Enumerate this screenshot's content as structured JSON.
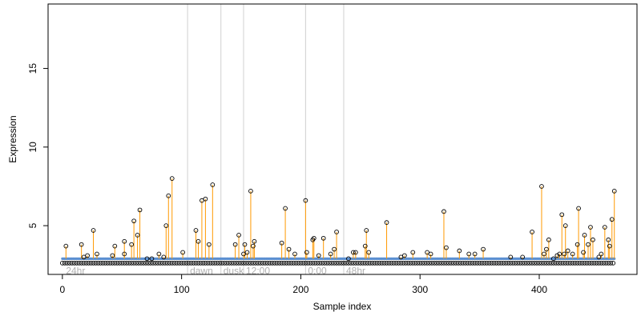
{
  "chart_data": {
    "type": "scatter",
    "title": "",
    "xlabel": "Sample index",
    "ylabel": "Expression",
    "xlim": [
      -12,
      482
    ],
    "ylim": [
      1.9,
      19.1
    ],
    "x_ticks": [
      0,
      100,
      200,
      300,
      400
    ],
    "y_ticks": [
      5,
      10,
      15
    ],
    "baseline": 2.9,
    "colors": {
      "stem": "#FF9900",
      "baseline_dots": "#5B8FD0",
      "points": "#000000",
      "vlines": "#D0D0D0",
      "annot": "#B0B0B0"
    },
    "annotations": [
      {
        "label": "24hr",
        "x": 1
      },
      {
        "label": "dawn",
        "x": 105
      },
      {
        "label": "dusk",
        "x": 133
      },
      {
        "label": "12:00",
        "x": 152
      },
      {
        "label": "0:00",
        "x": 204
      },
      {
        "label": "48hr",
        "x": 236
      }
    ],
    "points": [
      [
        3,
        3.7
      ],
      [
        16,
        3.8
      ],
      [
        18,
        3.0
      ],
      [
        21,
        3.1
      ],
      [
        26,
        4.7
      ],
      [
        29,
        3.2
      ],
      [
        42,
        3.1
      ],
      [
        44,
        3.7
      ],
      [
        52,
        3.2
      ],
      [
        52,
        4.0
      ],
      [
        58,
        3.8
      ],
      [
        60,
        5.3
      ],
      [
        63,
        4.4
      ],
      [
        65,
        6.0
      ],
      [
        71,
        2.9
      ],
      [
        75,
        2.9
      ],
      [
        81,
        3.2
      ],
      [
        85,
        3.0
      ],
      [
        87,
        5.0
      ],
      [
        89,
        6.9
      ],
      [
        92,
        8.0
      ],
      [
        101,
        3.3
      ],
      [
        112,
        4.7
      ],
      [
        114,
        4.0
      ],
      [
        117,
        6.6
      ],
      [
        120,
        6.7
      ],
      [
        123,
        3.8
      ],
      [
        126,
        7.6
      ],
      [
        145,
        3.8
      ],
      [
        148,
        4.4
      ],
      [
        152,
        3.2
      ],
      [
        153,
        3.8
      ],
      [
        155,
        3.3
      ],
      [
        158,
        7.2
      ],
      [
        160,
        3.7
      ],
      [
        161,
        4.0
      ],
      [
        184,
        3.9
      ],
      [
        187,
        6.1
      ],
      [
        190,
        3.5
      ],
      [
        195,
        3.2
      ],
      [
        204,
        6.6
      ],
      [
        205,
        3.3
      ],
      [
        210,
        4.1
      ],
      [
        211,
        4.2
      ],
      [
        215,
        3.1
      ],
      [
        219,
        4.2
      ],
      [
        225,
        3.2
      ],
      [
        228,
        3.5
      ],
      [
        230,
        4.6
      ],
      [
        240,
        2.9
      ],
      [
        244,
        3.3
      ],
      [
        246,
        3.3
      ],
      [
        254,
        3.7
      ],
      [
        255,
        4.7
      ],
      [
        257,
        3.3
      ],
      [
        272,
        5.2
      ],
      [
        284,
        3.0
      ],
      [
        287,
        3.1
      ],
      [
        294,
        3.3
      ],
      [
        306,
        3.3
      ],
      [
        309,
        3.2
      ],
      [
        320,
        5.9
      ],
      [
        322,
        3.6
      ],
      [
        333,
        3.4
      ],
      [
        341,
        3.2
      ],
      [
        346,
        3.2
      ],
      [
        353,
        3.5
      ],
      [
        376,
        3.0
      ],
      [
        386,
        3.0
      ],
      [
        394,
        4.6
      ],
      [
        402,
        7.5
      ],
      [
        404,
        3.2
      ],
      [
        406,
        3.5
      ],
      [
        408,
        4.1
      ],
      [
        412,
        2.9
      ],
      [
        415,
        3.1
      ],
      [
        417,
        3.2
      ],
      [
        419,
        5.7
      ],
      [
        421,
        3.2
      ],
      [
        422,
        5.0
      ],
      [
        424,
        3.4
      ],
      [
        428,
        3.2
      ],
      [
        432,
        3.8
      ],
      [
        433,
        6.1
      ],
      [
        437,
        3.3
      ],
      [
        438,
        4.4
      ],
      [
        441,
        3.8
      ],
      [
        443,
        4.9
      ],
      [
        445,
        4.1
      ],
      [
        450,
        3.0
      ],
      [
        452,
        3.2
      ],
      [
        455,
        4.9
      ],
      [
        458,
        4.1
      ],
      [
        459,
        3.7
      ],
      [
        461,
        5.4
      ],
      [
        463,
        7.2
      ]
    ]
  }
}
